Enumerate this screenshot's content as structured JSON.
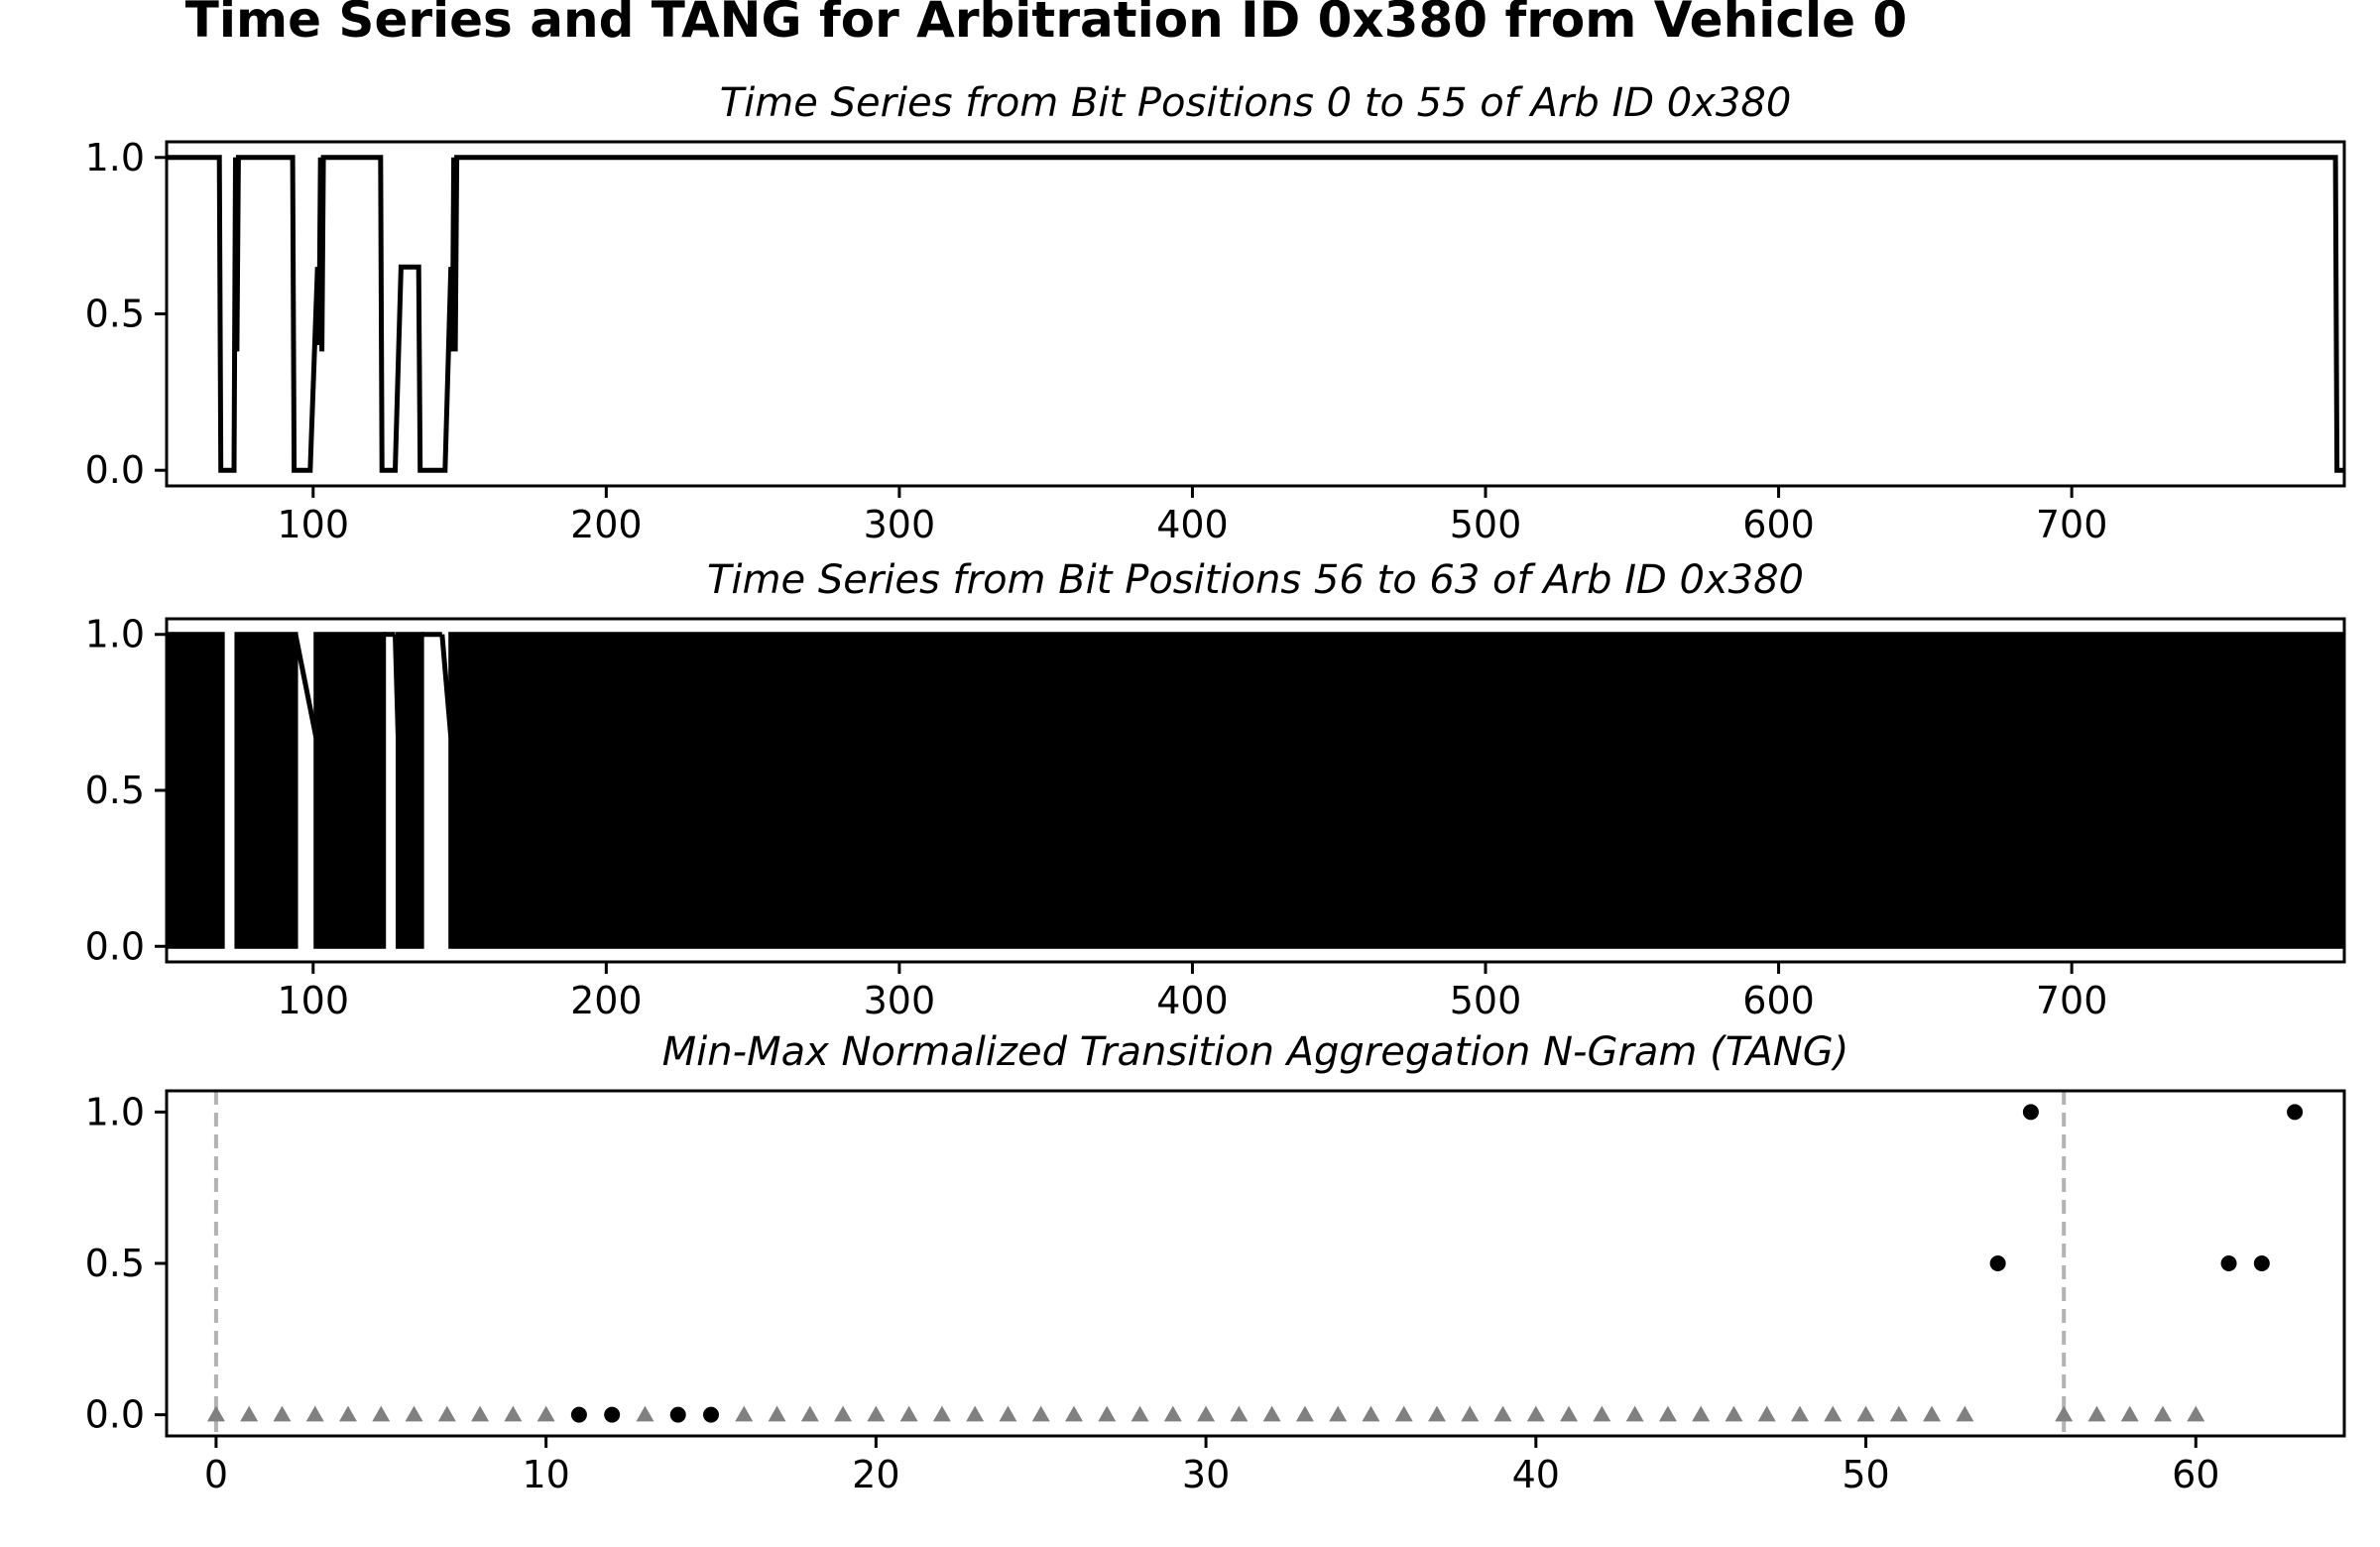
{
  "title": "Time Series and TANG for Arbitration ID 0x380 from Vehicle 0",
  "colors": {
    "line": "#000000",
    "marker_padding": "#808080",
    "guide": "#b3b3b3"
  },
  "chart_data": [
    {
      "type": "line",
      "title": "Time Series from Bit Positions 0 to 55 of Arb ID 0x380",
      "xlim": [
        50,
        793
      ],
      "ylim": [
        -0.05,
        1.05
      ],
      "x_ticks": [
        100,
        200,
        300,
        400,
        500,
        600,
        700
      ],
      "y_ticks": [
        "0.0",
        "0.5",
        "1.0"
      ],
      "grid": false,
      "series": [
        {
          "x": [
            50,
            68,
            68.5,
            73,
            73.5,
            74,
            74.5,
            78,
            93,
            93.5,
            99,
            101.5,
            102,
            102.5,
            103,
            103.5,
            123,
            123.5,
            128,
            130,
            136,
            136.5,
            145,
            147,
            147.5,
            148,
            148.5,
            149,
            149.5,
            790,
            790.5,
            793
          ],
          "y": [
            1,
            1,
            0,
            0,
            1,
            0.38,
            1,
            1,
            1,
            0,
            0,
            0.65,
            0.4,
            1,
            0.38,
            1,
            1,
            0,
            0,
            0.65,
            0.65,
            0,
            0,
            0.65,
            0.38,
            1,
            0.38,
            1,
            1,
            1,
            0,
            0
          ]
        }
      ]
    },
    {
      "type": "line",
      "title": "Time Series from Bit Positions 56 to 63 of Arb ID 0x380",
      "xlim": [
        50,
        793
      ],
      "ylim": [
        -0.05,
        1.05
      ],
      "x_ticks": [
        100,
        200,
        300,
        400,
        500,
        600,
        700
      ],
      "y_ticks": [
        "0.0",
        "0.5",
        "1.0"
      ],
      "grid": false,
      "note": "dense oscillation between 0 and 1 renders as solid black fill",
      "dense_blocks": [
        [
          50,
          69
        ],
        [
          74,
          94
        ],
        [
          101,
          124
        ],
        [
          129,
          137
        ],
        [
          147,
          792
        ]
      ],
      "ramps": [
        {
          "x": [
            94,
            101
          ],
          "y": [
            1,
            0.67
          ]
        },
        {
          "x": [
            124,
            128
          ],
          "y": [
            1,
            1
          ]
        },
        {
          "x": [
            128,
            129
          ],
          "y": [
            1,
            0.67
          ]
        },
        {
          "x": [
            137,
            144
          ],
          "y": [
            1,
            1
          ]
        },
        {
          "x": [
            144,
            147
          ],
          "y": [
            1,
            0.67
          ]
        }
      ]
    },
    {
      "type": "scatter",
      "title": "Min-Max Normalized Transition Aggregation N-Gram (TANG)",
      "xlim": [
        -1.5,
        64.5
      ],
      "ylim": [
        -0.07,
        1.07
      ],
      "x_ticks": [
        0,
        10,
        20,
        30,
        40,
        50,
        60
      ],
      "y_ticks": [
        "0.0",
        "0.5",
        "1.0"
      ],
      "grid": false,
      "boundaries": [
        0,
        56
      ],
      "points": [
        {
          "x": 0,
          "y": 0,
          "m": "tri"
        },
        {
          "x": 1,
          "y": 0,
          "m": "tri"
        },
        {
          "x": 2,
          "y": 0,
          "m": "tri"
        },
        {
          "x": 3,
          "y": 0,
          "m": "tri"
        },
        {
          "x": 4,
          "y": 0,
          "m": "tri"
        },
        {
          "x": 5,
          "y": 0,
          "m": "tri"
        },
        {
          "x": 6,
          "y": 0,
          "m": "tri"
        },
        {
          "x": 7,
          "y": 0,
          "m": "tri"
        },
        {
          "x": 8,
          "y": 0,
          "m": "tri"
        },
        {
          "x": 9,
          "y": 0,
          "m": "tri"
        },
        {
          "x": 10,
          "y": 0,
          "m": "tri"
        },
        {
          "x": 11,
          "y": 0,
          "m": "dot"
        },
        {
          "x": 12,
          "y": 0,
          "m": "dot"
        },
        {
          "x": 13,
          "y": 0,
          "m": "tri"
        },
        {
          "x": 14,
          "y": 0,
          "m": "dot"
        },
        {
          "x": 15,
          "y": 0,
          "m": "dot"
        },
        {
          "x": 16,
          "y": 0,
          "m": "tri"
        },
        {
          "x": 17,
          "y": 0,
          "m": "tri"
        },
        {
          "x": 18,
          "y": 0,
          "m": "tri"
        },
        {
          "x": 19,
          "y": 0,
          "m": "tri"
        },
        {
          "x": 20,
          "y": 0,
          "m": "tri"
        },
        {
          "x": 21,
          "y": 0,
          "m": "tri"
        },
        {
          "x": 22,
          "y": 0,
          "m": "tri"
        },
        {
          "x": 23,
          "y": 0,
          "m": "tri"
        },
        {
          "x": 24,
          "y": 0,
          "m": "tri"
        },
        {
          "x": 25,
          "y": 0,
          "m": "tri"
        },
        {
          "x": 26,
          "y": 0,
          "m": "tri"
        },
        {
          "x": 27,
          "y": 0,
          "m": "tri"
        },
        {
          "x": 28,
          "y": 0,
          "m": "tri"
        },
        {
          "x": 29,
          "y": 0,
          "m": "tri"
        },
        {
          "x": 30,
          "y": 0,
          "m": "tri"
        },
        {
          "x": 31,
          "y": 0,
          "m": "tri"
        },
        {
          "x": 32,
          "y": 0,
          "m": "tri"
        },
        {
          "x": 33,
          "y": 0,
          "m": "tri"
        },
        {
          "x": 34,
          "y": 0,
          "m": "tri"
        },
        {
          "x": 35,
          "y": 0,
          "m": "tri"
        },
        {
          "x": 36,
          "y": 0,
          "m": "tri"
        },
        {
          "x": 37,
          "y": 0,
          "m": "tri"
        },
        {
          "x": 38,
          "y": 0,
          "m": "tri"
        },
        {
          "x": 39,
          "y": 0,
          "m": "tri"
        },
        {
          "x": 40,
          "y": 0,
          "m": "tri"
        },
        {
          "x": 41,
          "y": 0,
          "m": "tri"
        },
        {
          "x": 42,
          "y": 0,
          "m": "tri"
        },
        {
          "x": 43,
          "y": 0,
          "m": "tri"
        },
        {
          "x": 44,
          "y": 0,
          "m": "tri"
        },
        {
          "x": 45,
          "y": 0,
          "m": "tri"
        },
        {
          "x": 46,
          "y": 0,
          "m": "tri"
        },
        {
          "x": 47,
          "y": 0,
          "m": "tri"
        },
        {
          "x": 48,
          "y": 0,
          "m": "tri"
        },
        {
          "x": 49,
          "y": 0,
          "m": "tri"
        },
        {
          "x": 50,
          "y": 0,
          "m": "tri"
        },
        {
          "x": 51,
          "y": 0,
          "m": "tri"
        },
        {
          "x": 52,
          "y": 0,
          "m": "tri"
        },
        {
          "x": 53,
          "y": 0,
          "m": "tri"
        },
        {
          "x": 54,
          "y": 0.5,
          "m": "dot"
        },
        {
          "x": 55,
          "y": 1,
          "m": "dot"
        },
        {
          "x": 56,
          "y": 0,
          "m": "tri"
        },
        {
          "x": 57,
          "y": 0,
          "m": "tri"
        },
        {
          "x": 58,
          "y": 0,
          "m": "tri"
        },
        {
          "x": 59,
          "y": 0,
          "m": "tri"
        },
        {
          "x": 60,
          "y": 0,
          "m": "tri"
        },
        {
          "x": 61,
          "y": 0.5,
          "m": "dot"
        },
        {
          "x": 62,
          "y": 0.5,
          "m": "dot"
        },
        {
          "x": 63,
          "y": 1,
          "m": "dot"
        }
      ]
    }
  ]
}
